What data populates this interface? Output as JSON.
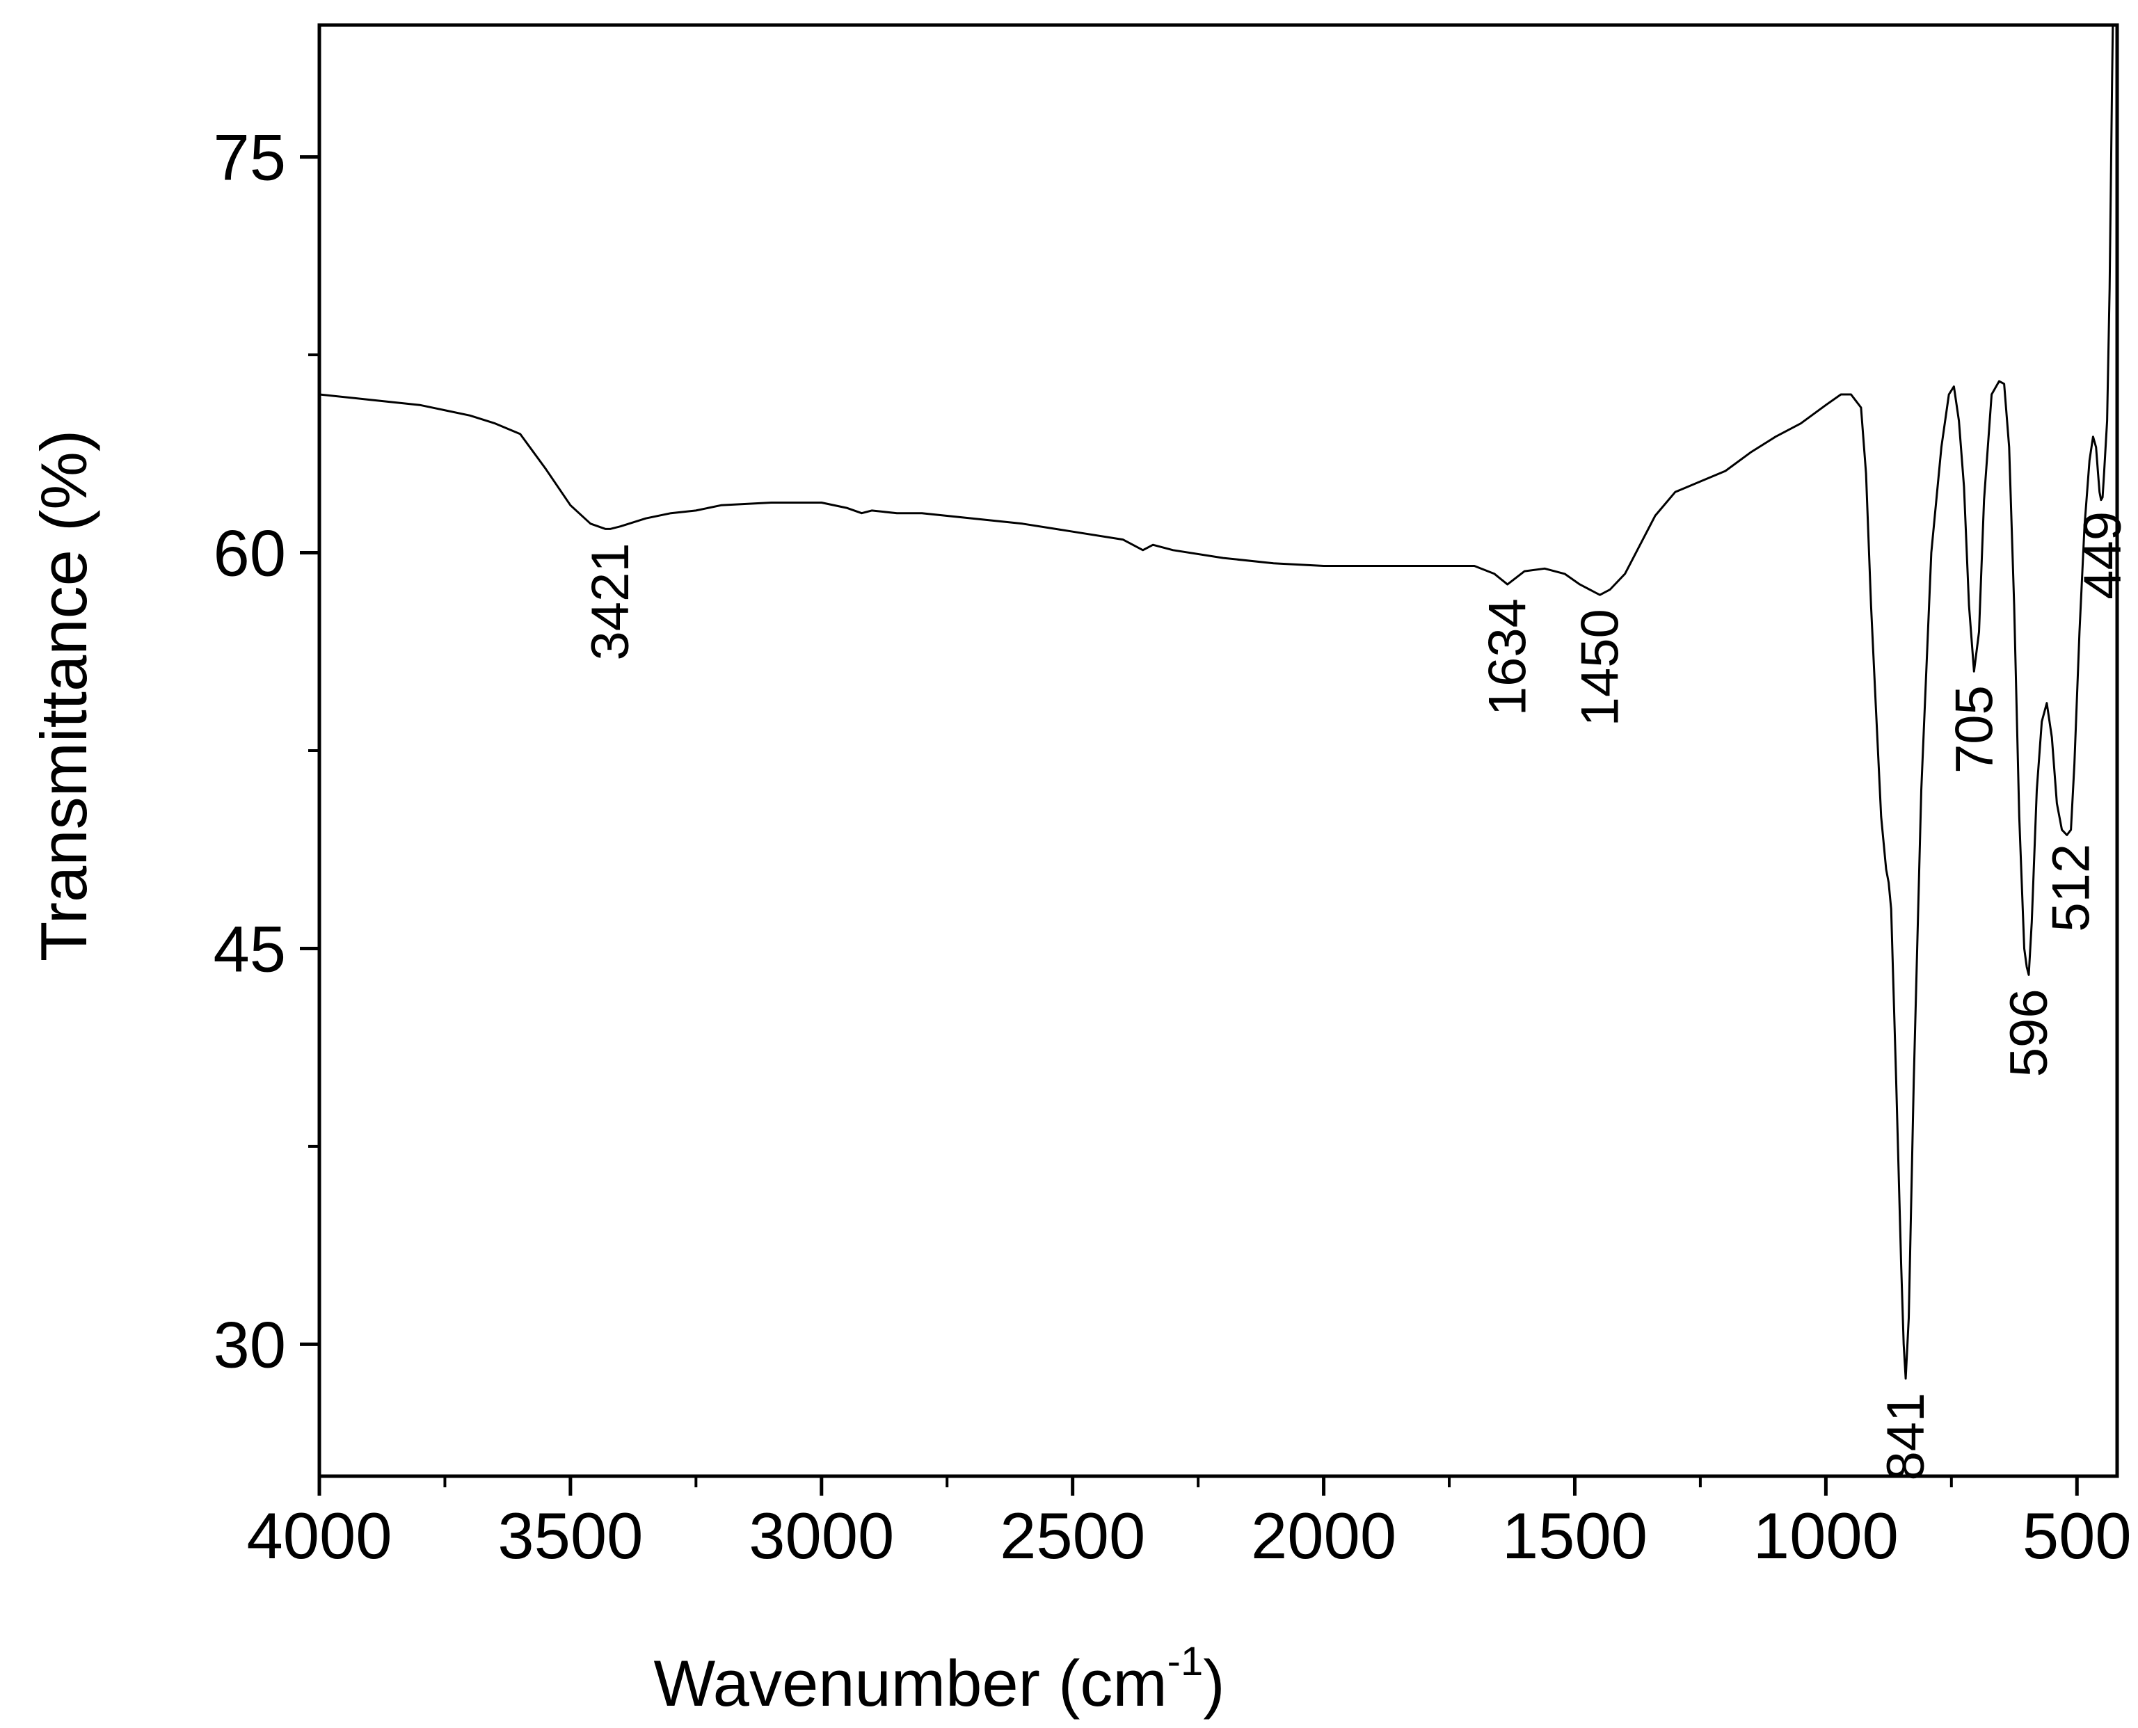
{
  "chart_data": {
    "type": "line",
    "xlabel": "Wavenumber (cm",
    "xlabel_sup": "-1",
    "xlabel_end": ")",
    "ylabel": "Transmittance (%)",
    "xlim": [
      4000,
      420
    ],
    "ylim": [
      25,
      80
    ],
    "x_reversed": true,
    "grid": false,
    "x_ticks": [
      4000,
      3500,
      3000,
      2500,
      2000,
      1500,
      1000,
      500
    ],
    "x_tick_labels": [
      "4000",
      "3500",
      "3000",
      "2500",
      "2000",
      "1500",
      "1000",
      "500"
    ],
    "y_ticks": [
      30,
      45,
      60,
      75
    ],
    "y_tick_labels": [
      "30",
      "45",
      "60",
      "75"
    ],
    "series": [
      {
        "color": "#000000",
        "x": [
          4000,
          3900,
          3800,
          3700,
          3650,
          3600,
          3550,
          3500,
          3460,
          3430,
          3421,
          3400,
          3350,
          3300,
          3250,
          3200,
          3100,
          3000,
          2950,
          2920,
          2900,
          2850,
          2800,
          2700,
          2600,
          2500,
          2400,
          2360,
          2340,
          2300,
          2200,
          2100,
          2000,
          1900,
          1800,
          1700,
          1660,
          1634,
          1600,
          1560,
          1520,
          1490,
          1460,
          1450,
          1430,
          1400,
          1370,
          1340,
          1300,
          1250,
          1200,
          1150,
          1100,
          1050,
          1000,
          970,
          950,
          930,
          920,
          910,
          900,
          890,
          880,
          875,
          870,
          860,
          850,
          845,
          841,
          835,
          825,
          810,
          790,
          770,
          755,
          745,
          735,
          725,
          715,
          705,
          695,
          685,
          670,
          655,
          645,
          635,
          625,
          615,
          605,
          600,
          596,
          590,
          580,
          570,
          560,
          550,
          540,
          530,
          520,
          512,
          505,
          495,
          485,
          475,
          468,
          462,
          458,
          455,
          452,
          449,
          446,
          440,
          435,
          430,
          425
        ],
        "y": [
          66.0,
          65.8,
          65.6,
          65.2,
          64.9,
          64.5,
          63.2,
          61.8,
          61.1,
          60.9,
          60.9,
          61.0,
          61.3,
          61.5,
          61.6,
          61.8,
          61.9,
          61.9,
          61.7,
          61.5,
          61.6,
          61.5,
          61.5,
          61.3,
          61.1,
          60.8,
          60.5,
          60.1,
          60.3,
          60.1,
          59.8,
          59.6,
          59.5,
          59.5,
          59.5,
          59.5,
          59.2,
          58.8,
          59.3,
          59.4,
          59.2,
          58.8,
          58.5,
          58.4,
          58.6,
          59.2,
          60.3,
          61.4,
          62.3,
          62.7,
          63.1,
          63.8,
          64.4,
          64.9,
          65.6,
          66.0,
          66.0,
          65.5,
          63.0,
          58.0,
          54.0,
          50.0,
          48.0,
          47.5,
          46.5,
          40.0,
          33.0,
          30.0,
          28.7,
          31.0,
          40.0,
          51.0,
          60.0,
          64.0,
          66.0,
          66.3,
          65.0,
          62.5,
          58.0,
          55.5,
          57.0,
          62.0,
          66.0,
          66.5,
          66.4,
          64.0,
          58.0,
          50.0,
          45.0,
          44.3,
          44.0,
          46.0,
          51.0,
          53.6,
          54.3,
          53.0,
          50.5,
          49.5,
          49.3,
          49.5,
          52.0,
          57.0,
          61.0,
          63.5,
          64.4,
          64.0,
          63.0,
          62.3,
          62.0,
          62.1,
          63.0,
          65.0,
          70.0,
          78.0,
          85.0
        ]
      }
    ],
    "annotations": [
      "3421",
      "1634",
      "1450",
      "841",
      "705",
      "596",
      "512",
      "449"
    ]
  }
}
